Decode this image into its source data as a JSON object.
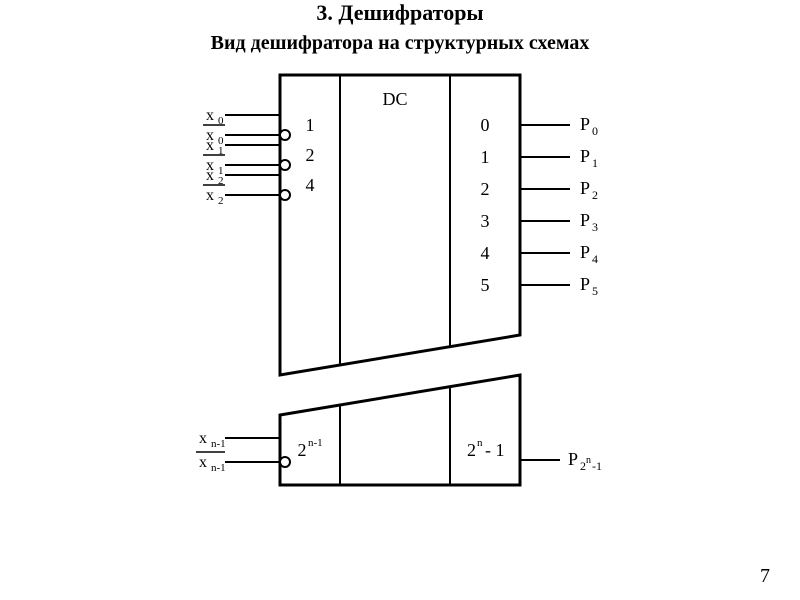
{
  "page_number": "7",
  "heading": "3. Дешифраторы",
  "subtitle": "Вид дешифратора на структурных схемах",
  "block_label": "DC",
  "inputs_top": [
    {
      "plain": "x",
      "sub": "0"
    },
    {
      "plain": "x",
      "sub": "0",
      "bar": true
    },
    {
      "plain": "x",
      "sub": "1"
    },
    {
      "plain": "x",
      "sub": "1",
      "bar": true
    },
    {
      "plain": "x",
      "sub": "2"
    },
    {
      "plain": "x",
      "sub": "2",
      "bar": true
    }
  ],
  "inputs_bottom": [
    {
      "plain": "x",
      "sub": "n-1"
    },
    {
      "plain": "x",
      "sub": "n-1",
      "bar": true
    }
  ],
  "left_inner_top": [
    "1",
    "2",
    "4"
  ],
  "left_inner_bottom_base": "2",
  "left_inner_bottom_sup": "n-1",
  "right_inner_top": [
    "0",
    "1",
    "2",
    "3",
    "4",
    "5"
  ],
  "right_inner_bottom_base": "2",
  "right_inner_bottom_sup": "n",
  "right_inner_bottom_suffix": " - 1",
  "outputs_top": [
    {
      "plain": "P",
      "sub": "0"
    },
    {
      "plain": "P",
      "sub": "1"
    },
    {
      "plain": "P",
      "sub": "2"
    },
    {
      "plain": "P",
      "sub": "3"
    },
    {
      "plain": "P",
      "sub": "4"
    },
    {
      "plain": "P",
      "sub": "5"
    }
  ],
  "output_bottom": {
    "plain": "P",
    "sub": "2",
    "sup_after": "n",
    "suffix": "-1"
  },
  "colors": {
    "stroke": "#000000",
    "background": "#ffffff",
    "text": "#000000"
  },
  "stroke_width_outer": 3,
  "stroke_width_inner": 2,
  "stroke_width_wire": 2
}
